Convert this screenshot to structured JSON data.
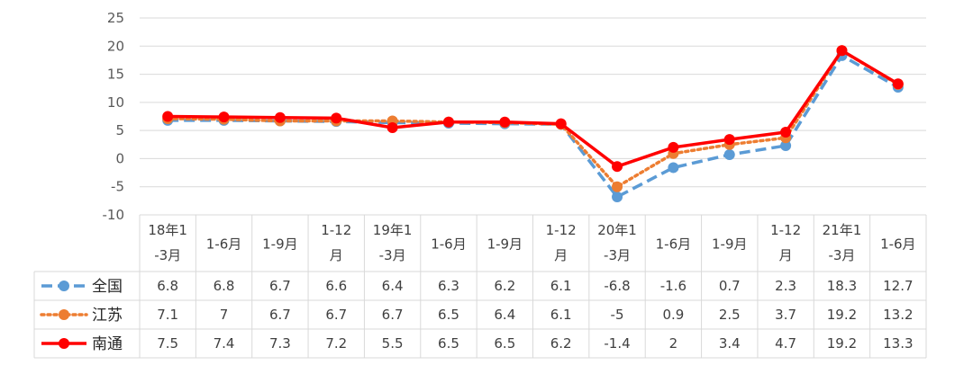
{
  "chart_data": {
    "type": "line",
    "title": "",
    "xlabel": "",
    "ylabel": "",
    "ylim": [
      -10,
      25
    ],
    "yticks": [
      25,
      20,
      15,
      10,
      5,
      0,
      -5,
      -10
    ],
    "grid": true,
    "legend": "left of data table",
    "categories": [
      [
        "18年1",
        "-3月"
      ],
      [
        "1-6月"
      ],
      [
        "1-9月"
      ],
      [
        "1-12",
        "月"
      ],
      [
        "19年1",
        "-3月"
      ],
      [
        "1-6月"
      ],
      [
        "1-9月"
      ],
      [
        "1-12",
        "月"
      ],
      [
        "20年1",
        "-3月"
      ],
      [
        "1-6月"
      ],
      [
        "1-9月"
      ],
      [
        "1-12",
        "月"
      ],
      [
        "21年1",
        "-3月"
      ],
      [
        "1-6月"
      ]
    ],
    "series": [
      {
        "name": "全国",
        "color": "#5B9BD5",
        "style": "dashed",
        "values": [
          6.8,
          6.8,
          6.7,
          6.6,
          6.4,
          6.3,
          6.2,
          6.1,
          -6.8,
          -1.6,
          0.7,
          2.3,
          18.3,
          12.7
        ],
        "labels": [
          "6.8",
          "6.8",
          "6.7",
          "6.6",
          "6.4",
          "6.3",
          "6.2",
          "6.1",
          "-6.8",
          "-1.6",
          "0.7",
          "2.3",
          "18.3",
          "12.7"
        ]
      },
      {
        "name": "江苏",
        "color": "#ED7D31",
        "style": "dotted",
        "values": [
          7.1,
          7,
          6.7,
          6.7,
          6.7,
          6.5,
          6.4,
          6.1,
          -5,
          0.9,
          2.5,
          3.7,
          19.2,
          13.2
        ],
        "labels": [
          "7.1",
          "7",
          "6.7",
          "6.7",
          "6.7",
          "6.5",
          "6.4",
          "6.1",
          "-5",
          "0.9",
          "2.5",
          "3.7",
          "19.2",
          "13.2"
        ]
      },
      {
        "name": "南通",
        "color": "#FF0000",
        "style": "solid",
        "values": [
          7.5,
          7.4,
          7.3,
          7.2,
          5.5,
          6.5,
          6.5,
          6.2,
          -1.4,
          2,
          3.4,
          4.7,
          19.2,
          13.3
        ],
        "labels": [
          "7.5",
          "7.4",
          "7.3",
          "7.2",
          "5.5",
          "6.5",
          "6.5",
          "6.2",
          "-1.4",
          "2",
          "3.4",
          "4.7",
          "19.2",
          "13.3"
        ]
      }
    ]
  }
}
